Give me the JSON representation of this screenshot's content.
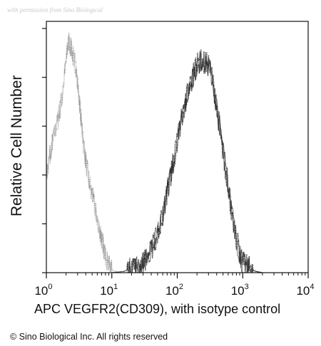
{
  "watermark": "with permission from Sino Biological",
  "copyright": "© Sino Biological Inc. All rights reserved",
  "chart_data": {
    "type": "area",
    "xscale": "log",
    "xlim": [
      1,
      10000
    ],
    "ylim": [
      0,
      100
    ],
    "xlabel": "APC VEGFR2(CD309), with isotype control",
    "ylabel": "Relative Cell Number",
    "x_ticks": [
      {
        "base": "10",
        "exp": "0",
        "value": 1
      },
      {
        "base": "10",
        "exp": "1",
        "value": 10
      },
      {
        "base": "10",
        "exp": "2",
        "value": 100
      },
      {
        "base": "10",
        "exp": "3",
        "value": 1000
      },
      {
        "base": "10",
        "exp": "4",
        "value": 10000
      }
    ],
    "series": [
      {
        "role": "isotype control",
        "style": "light dotted",
        "color": "#8a8a8a",
        "x": [
          1.0,
          1.2,
          1.5,
          1.8,
          2.0,
          2.2,
          2.5,
          2.8,
          3.0,
          3.3,
          3.7,
          4.2,
          5.0,
          6.0,
          7.0,
          8.0,
          9.0,
          10.0,
          11.5,
          13.0
        ],
        "y": [
          40,
          52,
          62,
          74,
          88,
          95,
          90,
          85,
          78,
          66,
          52,
          42,
          32,
          22,
          14,
          7,
          3,
          1,
          0.5,
          0
        ]
      },
      {
        "role": "VEGFR2 stained",
        "style": "dark dotted",
        "color": "#1a1a1a",
        "x": [
          10,
          15,
          20,
          30,
          40,
          50,
          60,
          70,
          80,
          100,
          120,
          150,
          180,
          200,
          230,
          260,
          300,
          350,
          400,
          500,
          600,
          700,
          800,
          900,
          1000,
          1300,
          1600,
          2000
        ],
        "y": [
          0,
          0.5,
          1.5,
          4,
          9,
          16,
          24,
          33,
          40,
          54,
          65,
          75,
          82,
          85,
          87,
          86,
          85,
          78,
          68,
          50,
          35,
          23,
          14,
          8,
          4,
          1.5,
          0.5,
          0
        ]
      }
    ],
    "grid": false,
    "legend": "none"
  }
}
